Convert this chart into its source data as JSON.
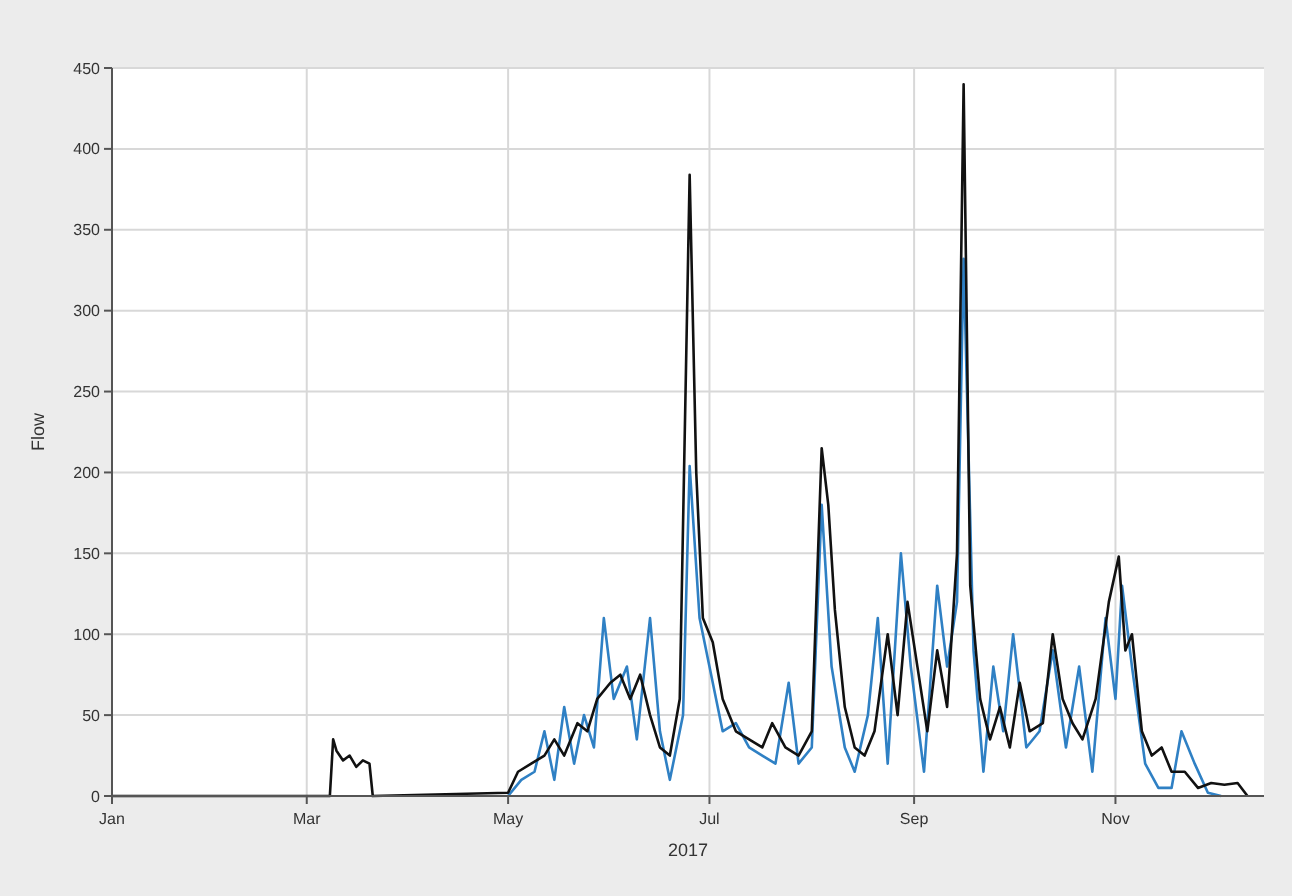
{
  "chart_data": {
    "type": "line",
    "xlabel": "2017",
    "ylabel": "Flow",
    "xlim": [
      "2017-01-01",
      "2017-12-16"
    ],
    "xticks": [
      {
        "value": "2017-01-01",
        "label": "Jan"
      },
      {
        "value": "2017-03-01",
        "label": "Mar"
      },
      {
        "value": "2017-05-01",
        "label": "May"
      },
      {
        "value": "2017-07-01",
        "label": "Jul"
      },
      {
        "value": "2017-09-01",
        "label": "Sep"
      },
      {
        "value": "2017-11-01",
        "label": "Nov"
      }
    ],
    "ylim": [
      0,
      450
    ],
    "yticks": [
      0,
      50,
      100,
      150,
      200,
      250,
      300,
      350,
      400,
      450
    ],
    "grid": true,
    "series": [
      {
        "color": "#2f80c4",
        "x": [
          "2017-05-01",
          "2017-05-05",
          "2017-05-09",
          "2017-05-12",
          "2017-05-15",
          "2017-05-18",
          "2017-05-21",
          "2017-05-24",
          "2017-05-27",
          "2017-05-30",
          "2017-06-02",
          "2017-06-06",
          "2017-06-09",
          "2017-06-13",
          "2017-06-16",
          "2017-06-19",
          "2017-06-23",
          "2017-06-25",
          "2017-06-28",
          "2017-07-01",
          "2017-07-05",
          "2017-07-09",
          "2017-07-13",
          "2017-07-17",
          "2017-07-21",
          "2017-07-25",
          "2017-07-28",
          "2017-08-01",
          "2017-08-04",
          "2017-08-07",
          "2017-08-11",
          "2017-08-14",
          "2017-08-18",
          "2017-08-21",
          "2017-08-24",
          "2017-08-28",
          "2017-08-31",
          "2017-09-04",
          "2017-09-08",
          "2017-09-11",
          "2017-09-14",
          "2017-09-16",
          "2017-09-19",
          "2017-09-22",
          "2017-09-25",
          "2017-09-28",
          "2017-10-01",
          "2017-10-05",
          "2017-10-09",
          "2017-10-13",
          "2017-10-17",
          "2017-10-21",
          "2017-10-25",
          "2017-10-29",
          "2017-11-01",
          "2017-11-03",
          "2017-11-06",
          "2017-11-10",
          "2017-11-14",
          "2017-11-18",
          "2017-11-21",
          "2017-11-25",
          "2017-11-29",
          "2017-12-03"
        ],
        "values": [
          0,
          10,
          15,
          40,
          10,
          55,
          20,
          50,
          30,
          110,
          60,
          80,
          35,
          110,
          40,
          10,
          50,
          204,
          110,
          80,
          40,
          45,
          30,
          25,
          20,
          70,
          20,
          30,
          180,
          80,
          30,
          15,
          50,
          110,
          20,
          150,
          80,
          15,
          130,
          80,
          120,
          332,
          90,
          15,
          80,
          40,
          100,
          30,
          40,
          90,
          30,
          80,
          15,
          110,
          60,
          130,
          80,
          20,
          5,
          5,
          40,
          20,
          2,
          0
        ]
      },
      {
        "color": "#111111",
        "x": [
          "2017-01-01",
          "2017-03-08",
          "2017-03-09",
          "2017-03-10",
          "2017-03-12",
          "2017-03-14",
          "2017-03-16",
          "2017-03-18",
          "2017-03-20",
          "2017-03-21",
          "2017-05-01",
          "2017-05-04",
          "2017-05-08",
          "2017-05-12",
          "2017-05-15",
          "2017-05-18",
          "2017-05-22",
          "2017-05-25",
          "2017-05-28",
          "2017-06-01",
          "2017-06-04",
          "2017-06-07",
          "2017-06-10",
          "2017-06-13",
          "2017-06-16",
          "2017-06-19",
          "2017-06-22",
          "2017-06-25",
          "2017-06-27",
          "2017-06-29",
          "2017-07-02",
          "2017-07-05",
          "2017-07-09",
          "2017-07-13",
          "2017-07-17",
          "2017-07-20",
          "2017-07-24",
          "2017-07-28",
          "2017-08-01",
          "2017-08-04",
          "2017-08-06",
          "2017-08-08",
          "2017-08-11",
          "2017-08-14",
          "2017-08-17",
          "2017-08-20",
          "2017-08-24",
          "2017-08-27",
          "2017-08-30",
          "2017-09-02",
          "2017-09-05",
          "2017-09-08",
          "2017-09-11",
          "2017-09-14",
          "2017-09-16",
          "2017-09-18",
          "2017-09-21",
          "2017-09-24",
          "2017-09-27",
          "2017-09-30",
          "2017-10-03",
          "2017-10-06",
          "2017-10-10",
          "2017-10-13",
          "2017-10-16",
          "2017-10-19",
          "2017-10-22",
          "2017-10-26",
          "2017-10-30",
          "2017-11-02",
          "2017-11-04",
          "2017-11-06",
          "2017-11-09",
          "2017-11-12",
          "2017-11-15",
          "2017-11-18",
          "2017-11-22",
          "2017-11-26",
          "2017-11-30",
          "2017-12-04",
          "2017-12-08",
          "2017-12-11"
        ],
        "values": [
          0,
          0,
          35,
          28,
          22,
          25,
          18,
          22,
          20,
          0,
          2,
          15,
          20,
          25,
          35,
          25,
          45,
          40,
          60,
          70,
          75,
          60,
          75,
          50,
          30,
          25,
          60,
          384,
          200,
          110,
          95,
          60,
          40,
          35,
          30,
          45,
          30,
          25,
          40,
          215,
          180,
          115,
          55,
          30,
          25,
          40,
          100,
          50,
          120,
          80,
          40,
          90,
          55,
          150,
          440,
          130,
          60,
          35,
          55,
          30,
          70,
          40,
          45,
          100,
          60,
          45,
          35,
          60,
          120,
          148,
          90,
          100,
          40,
          25,
          30,
          15,
          15,
          5,
          8,
          7,
          8,
          0
        ]
      }
    ]
  }
}
